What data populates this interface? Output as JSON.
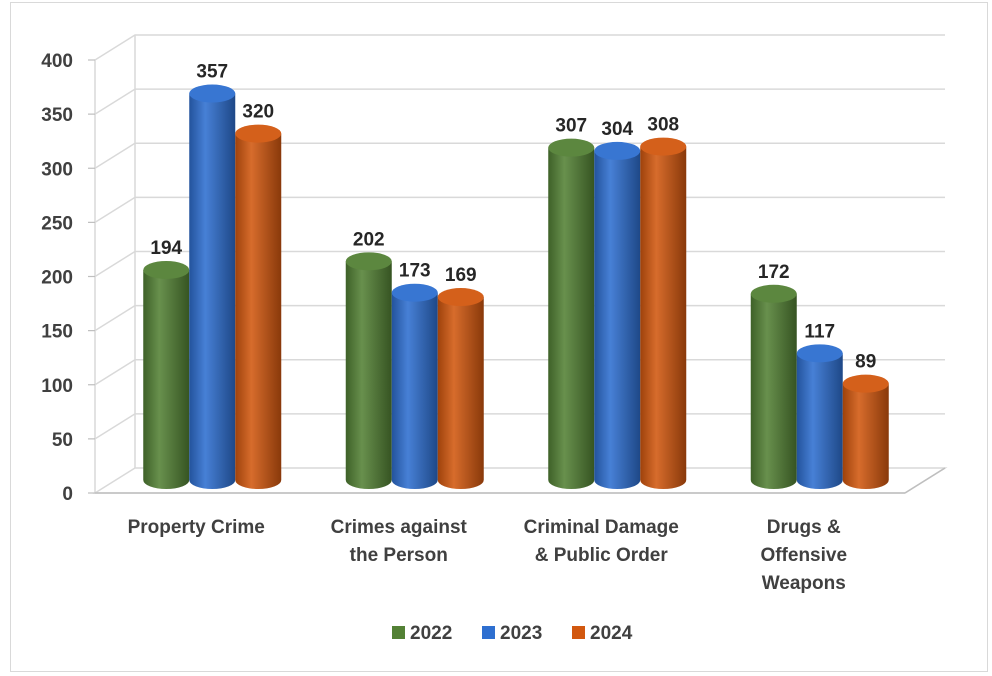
{
  "chart_data": {
    "type": "bar",
    "style": "3d-cylinder",
    "categories": [
      [
        "Property Crime"
      ],
      [
        "Crimes against",
        "the Person"
      ],
      [
        "Criminal Damage",
        "& Public Order"
      ],
      [
        "Drugs &",
        "Offensive",
        "Weapons"
      ]
    ],
    "series": [
      {
        "name": "2022",
        "color": "#538135",
        "values": [
          194,
          202,
          307,
          172
        ]
      },
      {
        "name": "2023",
        "color": "#2e6fd0",
        "values": [
          357,
          173,
          304,
          117
        ]
      },
      {
        "name": "2024",
        "color": "#d2580f",
        "values": [
          320,
          169,
          308,
          89
        ]
      }
    ],
    "ylim": [
      0,
      400
    ],
    "yticks": [
      "0",
      "50",
      "100",
      "150",
      "200",
      "250",
      "300",
      "350",
      "400"
    ],
    "grid": true,
    "legend": "bottom",
    "data_labels": true
  }
}
